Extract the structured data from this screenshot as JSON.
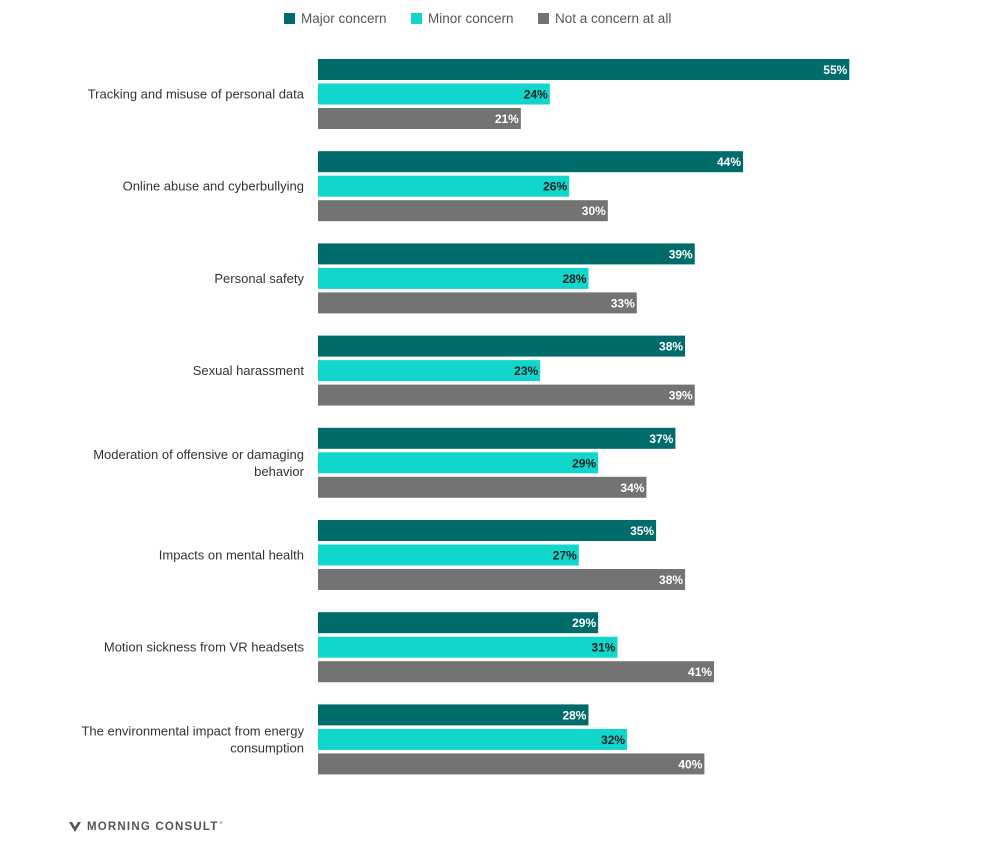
{
  "legend": {
    "items": [
      {
        "label": "Major concern",
        "color": "#006b6b"
      },
      {
        "label": "Minor concern",
        "color": "#11d6cc"
      },
      {
        "label": "Not a concern at all",
        "color": "#737373"
      }
    ]
  },
  "brand": {
    "name": "MORNING CONSULT",
    "mark": "˚"
  },
  "chart_data": {
    "type": "bar",
    "orientation": "horizontal",
    "xlim": [
      0,
      100
    ],
    "categories": [
      "Tracking and misuse of personal data",
      "Online abuse and cyberbullying",
      "Personal safety",
      "Sexual harassment",
      "Moderation of offensive or damaging behavior",
      "Impacts on mental health",
      "Motion sickness from VR headsets",
      "The environmental impact from energy consumption"
    ],
    "series": [
      {
        "name": "Major concern",
        "color": "#006b6b",
        "label_color": "#ffffff",
        "values": [
          55,
          44,
          39,
          38,
          37,
          35,
          29,
          28
        ]
      },
      {
        "name": "Minor concern",
        "color": "#11d6cc",
        "label_color": "#1f1f1f",
        "values": [
          24,
          26,
          28,
          23,
          29,
          27,
          31,
          32
        ]
      },
      {
        "name": "Not a concern at all",
        "color": "#737373",
        "label_color": "#ffffff",
        "values": [
          21,
          30,
          33,
          39,
          34,
          38,
          41,
          40
        ]
      }
    ],
    "value_suffix": "%",
    "grid": false,
    "legend_position": "top-center"
  }
}
